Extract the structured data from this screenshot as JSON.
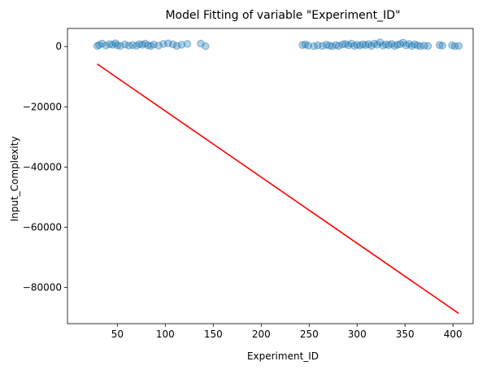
{
  "chart_data": {
    "type": "scatter",
    "title": "Model Fitting of  variable \"Experiment_ID\"",
    "xlabel": "Experiment_ID",
    "ylabel": "Input_Complexity",
    "xlim": [
      -2,
      421
    ],
    "ylim": [
      -92000,
      6000
    ],
    "x_ticks": [
      50,
      100,
      150,
      200,
      250,
      300,
      350,
      400
    ],
    "x_tick_labels": [
      "50",
      "100",
      "150",
      "200",
      "250",
      "300",
      "350",
      "400"
    ],
    "y_ticks": [
      0,
      -20000,
      -40000,
      -60000,
      -80000
    ],
    "y_tick_labels": [
      "0",
      "−20000",
      "−40000",
      "−60000",
      "−80000"
    ],
    "grid": false,
    "series": [
      {
        "kind": "scatter",
        "color": "#1f77b4",
        "alpha": 0.35,
        "points": [
          [
            29,
            200
          ],
          [
            31,
            500
          ],
          [
            34,
            1000
          ],
          [
            38,
            300
          ],
          [
            42,
            800
          ],
          [
            45,
            600
          ],
          [
            48,
            1100
          ],
          [
            50,
            400
          ],
          [
            53,
            200
          ],
          [
            58,
            700
          ],
          [
            62,
            300
          ],
          [
            66,
            500
          ],
          [
            70,
            250
          ],
          [
            73,
            800
          ],
          [
            76,
            600
          ],
          [
            79,
            1000
          ],
          [
            82,
            400
          ],
          [
            85,
            200
          ],
          [
            88,
            650
          ],
          [
            93,
            300
          ],
          [
            98,
            900
          ],
          [
            103,
            1100
          ],
          [
            108,
            700
          ],
          [
            112,
            200
          ],
          [
            117,
            600
          ],
          [
            123,
            900
          ],
          [
            137,
            1000
          ],
          [
            142,
            100
          ],
          [
            243,
            500
          ],
          [
            246,
            700
          ],
          [
            249,
            300
          ],
          [
            255,
            100
          ],
          [
            259,
            400
          ],
          [
            264,
            200
          ],
          [
            268,
            600
          ],
          [
            271,
            300
          ],
          [
            274,
            100
          ],
          [
            278,
            500
          ],
          [
            281,
            200
          ],
          [
            285,
            700
          ],
          [
            288,
            900
          ],
          [
            291,
            400
          ],
          [
            294,
            1000
          ],
          [
            297,
            200
          ],
          [
            300,
            600
          ],
          [
            303,
            300
          ],
          [
            306,
            700
          ],
          [
            309,
            500
          ],
          [
            312,
            800
          ],
          [
            315,
            200
          ],
          [
            318,
            1000
          ],
          [
            321,
            600
          ],
          [
            324,
            1400
          ],
          [
            327,
            300
          ],
          [
            330,
            700
          ],
          [
            333,
            500
          ],
          [
            336,
            900
          ],
          [
            339,
            200
          ],
          [
            342,
            600
          ],
          [
            345,
            800
          ],
          [
            348,
            1300
          ],
          [
            351,
            400
          ],
          [
            354,
            900
          ],
          [
            357,
            200
          ],
          [
            360,
            700
          ],
          [
            363,
            400
          ],
          [
            366,
            100
          ],
          [
            370,
            300
          ],
          [
            374,
            200
          ],
          [
            386,
            500
          ],
          [
            389,
            300
          ],
          [
            399,
            400
          ],
          [
            402,
            100
          ],
          [
            406,
            200
          ]
        ]
      },
      {
        "kind": "line",
        "color": "#ff0000",
        "points": [
          [
            29,
            -5800
          ],
          [
            406,
            -88600
          ]
        ]
      }
    ]
  }
}
